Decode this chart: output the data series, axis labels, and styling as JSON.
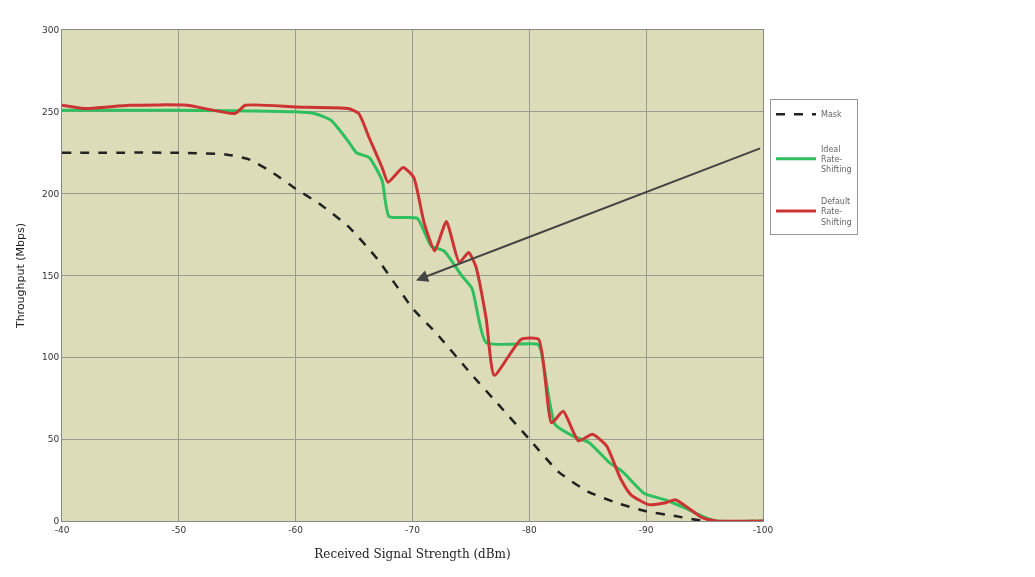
{
  "chart_data": {
    "type": "line",
    "xlabel": "Received Signal Strength (dBm)",
    "ylabel": "Throughput (Mbps)",
    "xlim": [
      -40,
      -100
    ],
    "xticks": [
      -40,
      -50,
      -60,
      -70,
      -80,
      -90,
      -100
    ],
    "ylim": [
      0,
      300
    ],
    "yticks": [
      0,
      50,
      100,
      150,
      200,
      250,
      300
    ],
    "grid": true,
    "legend": "right",
    "marker": "none",
    "series": [
      {
        "name": "Mask",
        "color": "#222222",
        "line_style": "dashed",
        "x": [
          -40,
          -50,
          -54,
          -56,
          -58,
          -60,
          -62,
          -64.5,
          -67,
          -70,
          -72,
          -75,
          -77.5,
          -80,
          -82.5,
          -85,
          -87.5,
          -90,
          -92.5,
          -95,
          -100
        ],
        "values": [
          225,
          225,
          224,
          221,
          213,
          203,
          194,
          180,
          160,
          130,
          115,
          90,
          70,
          50,
          30,
          18,
          11,
          6,
          3,
          0,
          0
        ]
      },
      {
        "name": "Ideal Rate-Shifting",
        "color": "#2fbf5f",
        "line_style": "solid",
        "x": [
          -40,
          -50,
          -60,
          -61.6,
          -63,
          -64.5,
          -65.2,
          -66.3,
          -67.4,
          -68,
          -70.4,
          -71.6,
          -72.7,
          -74.2,
          -75.1,
          -76.3,
          -80.7,
          -81,
          -82.2,
          -83.7,
          -85.1,
          -86.8,
          -88,
          -89.8,
          -91.6,
          -93.3,
          -95.1,
          -96,
          -100
        ],
        "values": [
          251,
          251,
          250,
          249,
          245,
          232,
          225,
          222,
          208,
          186,
          185,
          168,
          165,
          150,
          142,
          109,
          108,
          104,
          59,
          52,
          48,
          36,
          30,
          17,
          13,
          8,
          2,
          0,
          0
        ]
      },
      {
        "name": "Default Rate-Shifting",
        "color": "#cc3333",
        "line_style": "solid",
        "x": [
          -40,
          -41.9,
          -45.8,
          -50.7,
          -54.8,
          -55.7,
          -60,
          -64.5,
          -65.4,
          -66.3,
          -67.4,
          -67.9,
          -69.2,
          -70.1,
          -71,
          -71.9,
          -72.9,
          -74,
          -74.8,
          -75.4,
          -76.3,
          -77,
          -79.3,
          -80.8,
          -81.9,
          -82.9,
          -84.2,
          -85.4,
          -86.6,
          -87.8,
          -88.7,
          -90.2,
          -91.6,
          -92.5,
          -93.6,
          -94.8,
          -96,
          -100
        ],
        "values": [
          254,
          252,
          254,
          254,
          249,
          254,
          253,
          252,
          249,
          234,
          216,
          207,
          216,
          210,
          182,
          165,
          183,
          158,
          164,
          156,
          124,
          89,
          111,
          111,
          60,
          67,
          49,
          53,
          46,
          26,
          16,
          10,
          11,
          13,
          8,
          2,
          0,
          0
        ]
      }
    ]
  }
}
